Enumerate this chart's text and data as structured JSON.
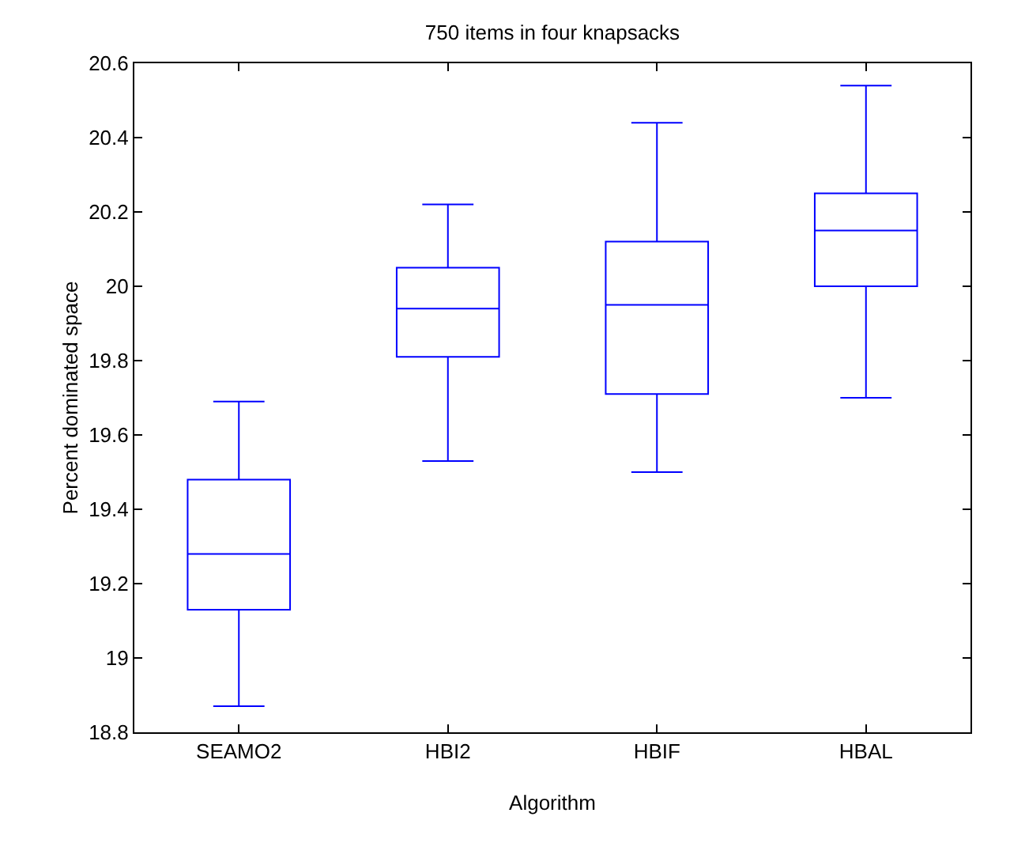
{
  "chart_data": {
    "type": "box",
    "title": "750 items in four knapsacks",
    "xlabel": "Algorithm",
    "ylabel": "Percent dominated space",
    "categories": [
      "SEAMO2",
      "HBI2",
      "HBIF",
      "HBAL"
    ],
    "boxes": [
      {
        "low": 18.87,
        "q1": 19.13,
        "median": 19.28,
        "q3": 19.48,
        "high": 19.69
      },
      {
        "low": 19.53,
        "q1": 19.81,
        "median": 19.94,
        "q3": 20.05,
        "high": 20.22
      },
      {
        "low": 19.5,
        "q1": 19.71,
        "median": 19.95,
        "q3": 20.12,
        "high": 20.44
      },
      {
        "low": 19.7,
        "q1": 20.0,
        "median": 20.15,
        "q3": 20.25,
        "high": 20.54
      }
    ],
    "color": "#0000ff",
    "ylim": [
      18.8,
      20.6
    ],
    "yticks": [
      18.8,
      19,
      19.2,
      19.4,
      19.6,
      19.8,
      20,
      20.2,
      20.4,
      20.6
    ],
    "grid": false,
    "legend": false
  }
}
